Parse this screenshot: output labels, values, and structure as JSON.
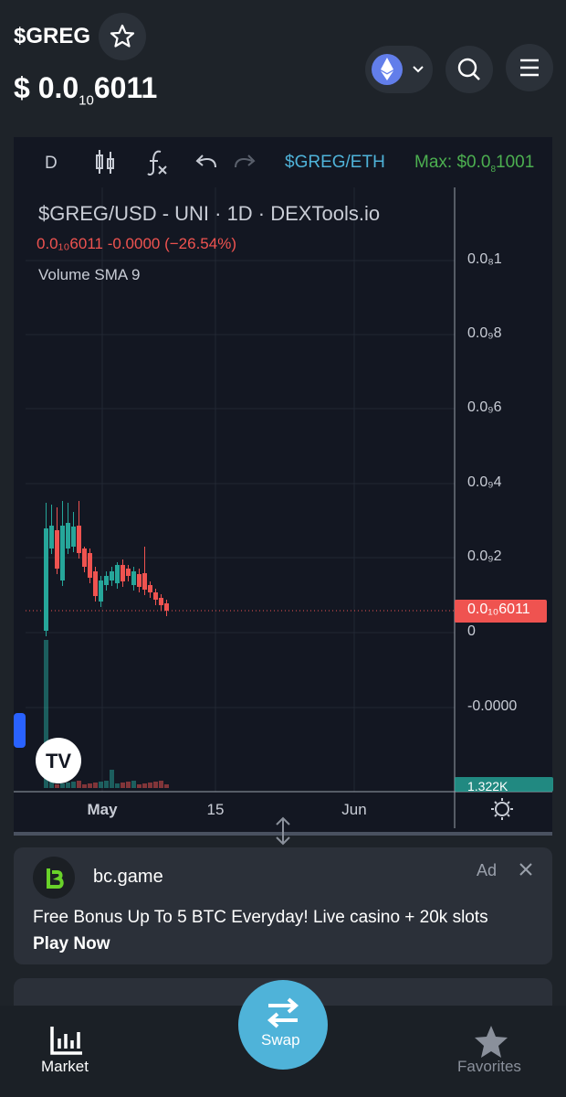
{
  "header": {
    "symbol": "$GREG",
    "price_prefix": "$ 0.0",
    "price_subscript": "10",
    "price_digits": "6011"
  },
  "toolbar": {
    "interval": "D",
    "pair": "$GREG/ETH",
    "max_prefix": "Max: $0.0",
    "max_subscript": "8",
    "max_digits": "1001"
  },
  "chart": {
    "legend_title": "$GREG/USD - UNI · 1D · DEXTools.io",
    "legend_values": "0.0₁₀6011 -0.0000 (−26.54%)",
    "indicator": "Volume SMA 9",
    "price_axis": [
      "0.0₈1",
      "0.0₉8",
      "0.0₉6",
      "0.0₉4",
      "0.0₉2",
      "0",
      "-0.0000"
    ],
    "price_tag": "0.0₁₀6011",
    "volume_tag": "1.322K",
    "time_axis": [
      "May",
      "15",
      "Jun"
    ]
  },
  "ad": {
    "name": "bc.game",
    "badge": "Ad",
    "text": "Free Bonus Up To 5 BTC Everyday! Live casino + 20k slots",
    "cta": "Play Now"
  },
  "nav": {
    "market": "Market",
    "swap": "Swap",
    "favorites": "Favorites"
  }
}
